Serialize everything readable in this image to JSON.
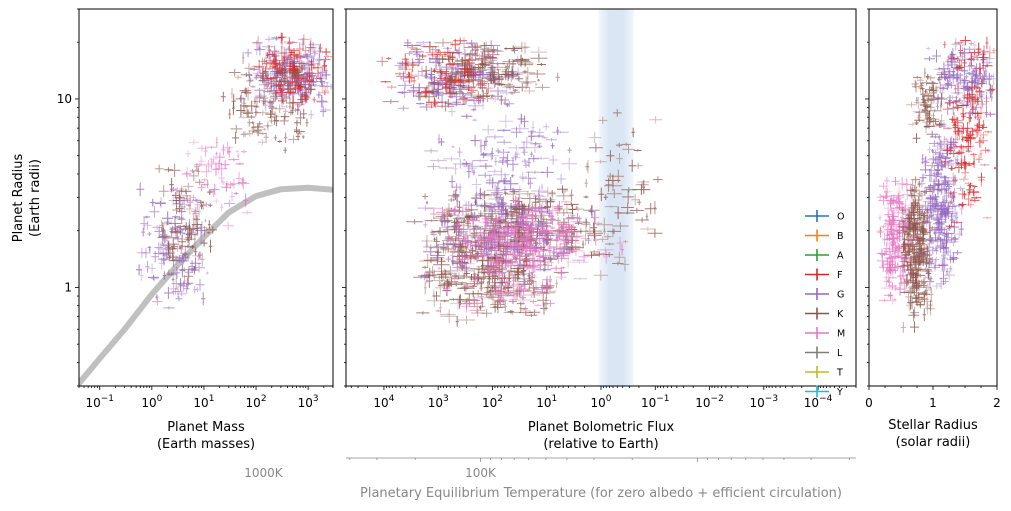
{
  "chart_data": [
    {
      "type": "scatter",
      "panel": "mass-radius",
      "xlabel": [
        "Planet Mass",
        "(Earth masses)"
      ],
      "ylabel": [
        "Planet Radius",
        "(Earth radii)"
      ],
      "xscale": "log",
      "yscale": "log",
      "xlim": [
        0.04,
        3000
      ],
      "ylim": [
        0.3,
        30
      ],
      "x_ticks": [
        {
          "v": 0.1,
          "b": "10",
          "e": "−1"
        },
        {
          "v": 1,
          "b": "10",
          "e": "0"
        },
        {
          "v": 10,
          "b": "10",
          "e": "1"
        },
        {
          "v": 100,
          "b": "10",
          "e": "2"
        },
        {
          "v": 1000,
          "b": "10",
          "e": "3"
        }
      ],
      "y_ticks": [
        {
          "v": 1,
          "label": "1"
        },
        {
          "v": 10,
          "label": "10"
        }
      ],
      "reference_curve": {
        "color": "#c0c0c0",
        "points": [
          [
            0.04,
            0.31
          ],
          [
            0.1,
            0.42
          ],
          [
            0.3,
            0.6
          ],
          [
            1,
            0.92
          ],
          [
            3,
            1.3
          ],
          [
            10,
            1.85
          ],
          [
            30,
            2.5
          ],
          [
            100,
            3.05
          ],
          [
            300,
            3.32
          ],
          [
            1000,
            3.38
          ],
          [
            3000,
            3.3
          ]
        ]
      },
      "clusters": [
        {
          "class": "G",
          "n": 120,
          "x": [
            0.5,
            15
          ],
          "y": [
            0.7,
            4
          ]
        },
        {
          "class": "K",
          "n": 90,
          "x": [
            1,
            20
          ],
          "y": [
            1.0,
            5
          ]
        },
        {
          "class": "G",
          "n": 220,
          "x": [
            50,
            3000
          ],
          "y": [
            8,
            22
          ]
        },
        {
          "class": "F",
          "n": 120,
          "x": [
            80,
            3000
          ],
          "y": [
            9,
            22
          ]
        },
        {
          "class": "K",
          "n": 120,
          "x": [
            20,
            2000
          ],
          "y": [
            5,
            18
          ]
        },
        {
          "class": "M",
          "n": 60,
          "x": [
            3,
            100
          ],
          "y": [
            2,
            8
          ]
        }
      ]
    },
    {
      "type": "scatter",
      "panel": "flux-radius",
      "xlabel": [
        "Planet Bolometric Flux",
        "(relative to Earth)"
      ],
      "xscale": "log",
      "xreversed": true,
      "xlim": [
        50000,
        2e-05
      ],
      "ylim": [
        0.3,
        30
      ],
      "x_ticks": [
        {
          "v": 10000,
          "b": "10",
          "e": "4"
        },
        {
          "v": 1000,
          "b": "10",
          "e": "3"
        },
        {
          "v": 100,
          "b": "10",
          "e": "2"
        },
        {
          "v": 10,
          "b": "10",
          "e": "1"
        },
        {
          "v": 1,
          "b": "10",
          "e": "0"
        },
        {
          "v": 0.1,
          "b": "10",
          "e": "−1"
        },
        {
          "v": 0.01,
          "b": "10",
          "e": "−2"
        },
        {
          "v": 0.001,
          "b": "10",
          "e": "−3"
        },
        {
          "v": 0.0001,
          "b": "10",
          "e": "−4"
        }
      ],
      "habitable_zone": {
        "flux_range": [
          1.1,
          0.25
        ],
        "color": "#aec7e8"
      },
      "secondary_axis": {
        "label": "Planetary Equilibrium Temperature (for zero albedo + efficient circulation)",
        "major_ticks": [
          {
            "label": "1000K",
            "flux": 360000000.0
          },
          {
            "label": "100K",
            "flux": 36000.0
          }
        ]
      },
      "legend": {
        "location": "right",
        "entries": [
          {
            "label": "O",
            "color": "#1f77b4"
          },
          {
            "label": "B",
            "color": "#ff7f0e"
          },
          {
            "label": "A",
            "color": "#2ca02c"
          },
          {
            "label": "F",
            "color": "#d62728"
          },
          {
            "label": "G",
            "color": "#9467bd"
          },
          {
            "label": "K",
            "color": "#8c564b"
          },
          {
            "label": "M",
            "color": "#e377c2"
          },
          {
            "label": "L",
            "color": "#7f7f7f"
          },
          {
            "label": "T",
            "color": "#bcbd22"
          },
          {
            "label": "Y",
            "color": "#17becf"
          }
        ]
      },
      "clusters": [
        {
          "class": "G",
          "n": 180,
          "x": [
            20,
            8000
          ],
          "y": [
            8,
            22
          ]
        },
        {
          "class": "F",
          "n": 90,
          "x": [
            50,
            15000
          ],
          "y": [
            9,
            22
          ]
        },
        {
          "class": "K",
          "n": 140,
          "x": [
            5,
            3000
          ],
          "y": [
            9,
            20
          ]
        },
        {
          "class": "K",
          "n": 320,
          "x": [
            0.6,
            3000
          ],
          "y": [
            1.3,
            3.5
          ]
        },
        {
          "class": "G",
          "n": 220,
          "x": [
            1,
            3000
          ],
          "y": [
            1.0,
            3.6
          ]
        },
        {
          "class": "M",
          "n": 180,
          "x": [
            0.3,
            1500
          ],
          "y": [
            1.2,
            3.0
          ]
        },
        {
          "class": "K",
          "n": 260,
          "x": [
            5,
            3000
          ],
          "y": [
            0.6,
            2.0
          ]
        },
        {
          "class": "M",
          "n": 140,
          "x": [
            3,
            1000
          ],
          "y": [
            0.7,
            2.5
          ]
        },
        {
          "class": "G",
          "n": 100,
          "x": [
            2,
            2000
          ],
          "y": [
            3.0,
            8
          ]
        },
        {
          "class": "K",
          "n": 60,
          "x": [
            0.05,
            3
          ],
          "y": [
            1.0,
            10
          ]
        }
      ]
    },
    {
      "type": "scatter",
      "panel": "stellar-radius",
      "xlabel": [
        "Stellar Radius",
        "(solar radii)"
      ],
      "xscale": "linear",
      "yscale": "log",
      "xlim": [
        0,
        2
      ],
      "ylim": [
        0.3,
        30
      ],
      "x_ticks": [
        {
          "v": 0,
          "label": "0"
        },
        {
          "v": 1,
          "label": "1"
        },
        {
          "v": 2,
          "label": "2"
        }
      ],
      "clusters": [
        {
          "class": "M",
          "n": 220,
          "x": [
            0.1,
            0.8
          ],
          "y": [
            0.8,
            4
          ]
        },
        {
          "class": "K",
          "n": 280,
          "x": [
            0.5,
            1.0
          ],
          "y": [
            0.6,
            4
          ]
        },
        {
          "class": "G",
          "n": 260,
          "x": [
            0.8,
            1.5
          ],
          "y": [
            0.9,
            8
          ]
        },
        {
          "class": "G",
          "n": 150,
          "x": [
            0.9,
            2.0
          ],
          "y": [
            8,
            22
          ]
        },
        {
          "class": "F",
          "n": 160,
          "x": [
            1.1,
            2.0
          ],
          "y": [
            2,
            22
          ]
        },
        {
          "class": "K",
          "n": 80,
          "x": [
            0.6,
            1.2
          ],
          "y": [
            6,
            15
          ]
        }
      ]
    }
  ]
}
